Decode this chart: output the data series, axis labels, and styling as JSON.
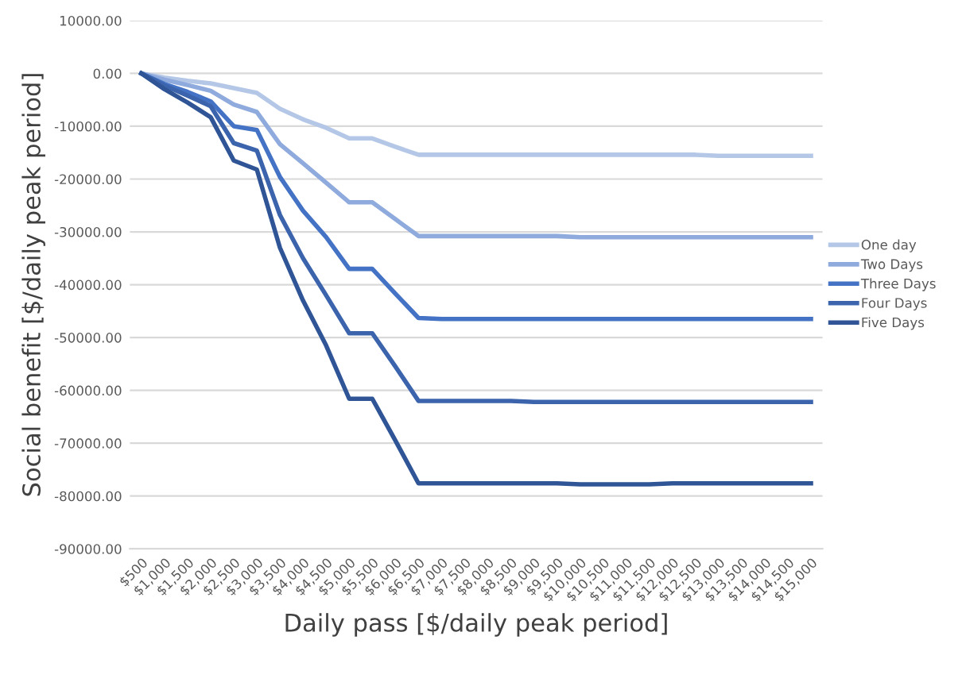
{
  "chart_data": {
    "type": "line",
    "xlabel": "Daily pass [$/daily peak period]",
    "ylabel": "Social benefit [$/daily peak period]",
    "categories": [
      "$500",
      "$1,000",
      "$1,500",
      "$2,000",
      "$2,500",
      "$3,000",
      "$3,500",
      "$4,000",
      "$4,500",
      "$5,000",
      "$5,500",
      "$6,000",
      "$6,500",
      "$7,000",
      "$7,500",
      "$8,000",
      "$8,500",
      "$9,000",
      "$9,500",
      "$10,000",
      "$10,500",
      "$11,000",
      "$11,500",
      "$12,000",
      "$12,500",
      "$13,000",
      "$13,500",
      "$14,000",
      "$14,500",
      "$15,000"
    ],
    "series": [
      {
        "name": "One day",
        "color": "#b4c7e7",
        "values": [
          0,
          -800,
          -1400,
          -1900,
          -2800,
          -3700,
          -6700,
          -8700,
          -10300,
          -12300,
          -12300,
          -13900,
          -15400,
          -15400,
          -15400,
          -15400,
          -15400,
          -15400,
          -15400,
          -15400,
          -15400,
          -15400,
          -15400,
          -15400,
          -15400,
          -15600,
          -15600,
          -15600,
          -15600,
          -15600
        ]
      },
      {
        "name": "Two Days",
        "color": "#8faadc",
        "values": [
          0,
          -1200,
          -2200,
          -3300,
          -5900,
          -7300,
          -13400,
          -17000,
          -20700,
          -24400,
          -24400,
          -27600,
          -30800,
          -30800,
          -30800,
          -30800,
          -30800,
          -30800,
          -30800,
          -31000,
          -31000,
          -31000,
          -31000,
          -31000,
          -31000,
          -31000,
          -31000,
          -31000,
          -31000,
          -31000
        ]
      },
      {
        "name": "Three Days",
        "color": "#4472c4",
        "values": [
          0,
          -2000,
          -3500,
          -5300,
          -10000,
          -10700,
          -19600,
          -26000,
          -31000,
          -37000,
          -37000,
          -41700,
          -46300,
          -46500,
          -46500,
          -46500,
          -46500,
          -46500,
          -46500,
          -46500,
          -46500,
          -46500,
          -46500,
          -46500,
          -46500,
          -46500,
          -46500,
          -46500,
          -46500,
          -46500
        ]
      },
      {
        "name": "Four Days",
        "color": "#3b64ad",
        "values": [
          0,
          -2300,
          -4200,
          -6200,
          -13200,
          -14600,
          -26800,
          -35000,
          -42000,
          -49200,
          -49200,
          -55500,
          -62000,
          -62000,
          -62000,
          -62000,
          -62000,
          -62200,
          -62200,
          -62200,
          -62200,
          -62200,
          -62200,
          -62200,
          -62200,
          -62200,
          -62200,
          -62200,
          -62200,
          -62200
        ]
      },
      {
        "name": "Five Days",
        "color": "#2f5597",
        "values": [
          0,
          -3000,
          -5500,
          -8300,
          -16500,
          -18200,
          -33000,
          -43000,
          -51500,
          -61600,
          -61600,
          -69500,
          -77600,
          -77600,
          -77600,
          -77600,
          -77600,
          -77600,
          -77600,
          -77800,
          -77800,
          -77800,
          -77800,
          -77600,
          -77600,
          -77600,
          -77600,
          -77600,
          -77600,
          -77600
        ]
      }
    ],
    "ylim": [
      -90000,
      10000
    ],
    "yticks": [
      {
        "value": 10000,
        "label": "10000.00"
      },
      {
        "value": 0,
        "label": "0.00"
      },
      {
        "value": -10000,
        "label": "-10000.00"
      },
      {
        "value": -20000,
        "label": "-20000.00"
      },
      {
        "value": -30000,
        "label": "-30000.00"
      },
      {
        "value": -40000,
        "label": "-40000.00"
      },
      {
        "value": -50000,
        "label": "-50000.00"
      },
      {
        "value": -60000,
        "label": "-60000.00"
      },
      {
        "value": -70000,
        "label": "-70000.00"
      },
      {
        "value": -80000,
        "label": "-80000.00"
      },
      {
        "value": -90000,
        "label": "-90000.00"
      }
    ],
    "grid": "y",
    "legend": "right",
    "marker": "none",
    "line_style": "solid"
  }
}
